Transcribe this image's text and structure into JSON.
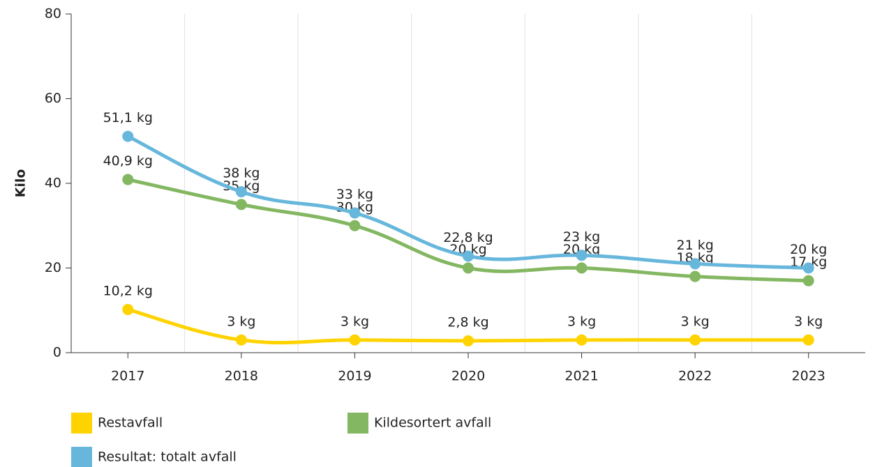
{
  "chart_data": {
    "type": "line",
    "y_label": "Kilo",
    "categories": [
      "2017",
      "2018",
      "2019",
      "2020",
      "2021",
      "2022",
      "2023"
    ],
    "series": [
      {
        "name": "Restavfall",
        "color": "#ffd300",
        "values": [
          10.2,
          3,
          3,
          2.8,
          3,
          3,
          3
        ],
        "value_labels": [
          "10,2 kg",
          "3 kg",
          "3 kg",
          "2,8 kg",
          "3 kg",
          "3 kg",
          "3 kg"
        ]
      },
      {
        "name": "Kildesortert avfall",
        "color": "#84b761",
        "values": [
          40.9,
          35,
          30,
          20,
          20,
          18,
          17
        ],
        "value_labels": [
          "40,9 kg",
          "35 kg",
          "30 kg",
          "20 kg",
          "20 kg",
          "18 kg",
          "17 kg"
        ]
      },
      {
        "name": "Resultat: totalt avfall",
        "color": "#67b7dc",
        "values": [
          51.1,
          38,
          33,
          22.8,
          23,
          21,
          20
        ],
        "value_labels": [
          "51,1 kg",
          "38 kg",
          "33 kg",
          "22,8 kg",
          "23 kg",
          "21 kg",
          "20 kg"
        ]
      }
    ],
    "ylim": [
      0,
      80
    ],
    "yticks": [
      0,
      20,
      40,
      60,
      80
    ],
    "grid": true,
    "legend": "bottom"
  }
}
